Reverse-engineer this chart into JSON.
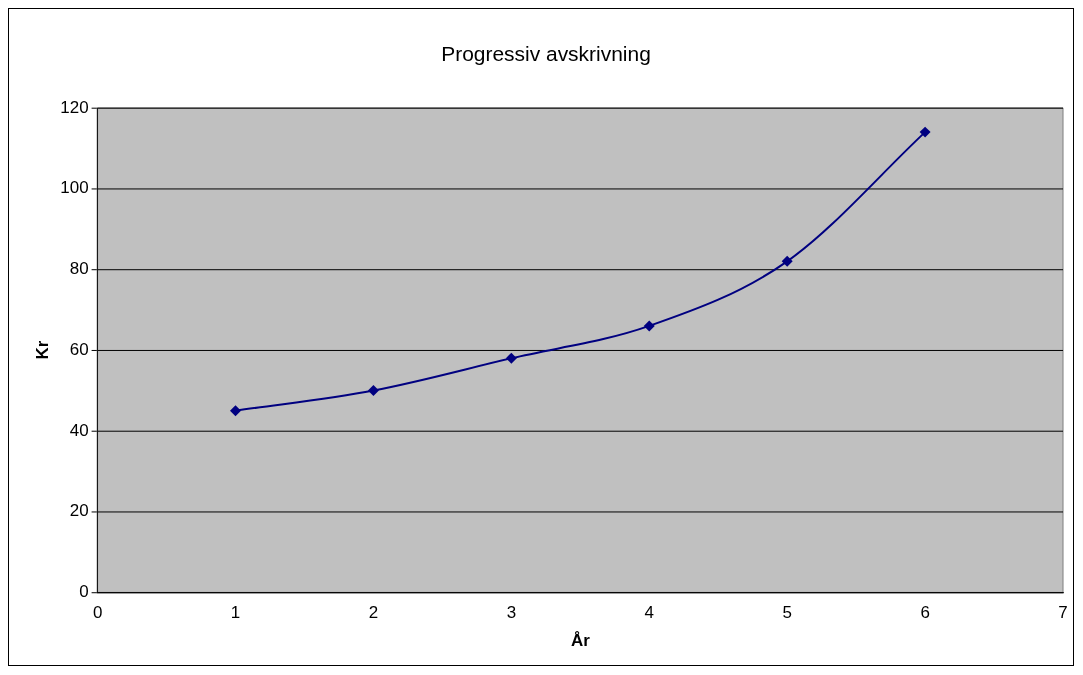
{
  "chart_data": {
    "type": "line",
    "title": "Progressiv avskrivning",
    "xlabel": "År",
    "ylabel": "Kr",
    "x": [
      1,
      2,
      3,
      4,
      5,
      6
    ],
    "series": [
      {
        "color": "#000080",
        "values": [
          45,
          50,
          58,
          66,
          82,
          114
        ]
      }
    ],
    "xlim": [
      0,
      7
    ],
    "xticks": [
      0,
      1,
      2,
      3,
      4,
      5,
      6,
      7
    ],
    "ylim": [
      0,
      120
    ],
    "yticks": [
      0,
      20,
      40,
      60,
      80,
      100,
      120
    ],
    "grid": "y",
    "marker": "diamond",
    "legend": false
  }
}
